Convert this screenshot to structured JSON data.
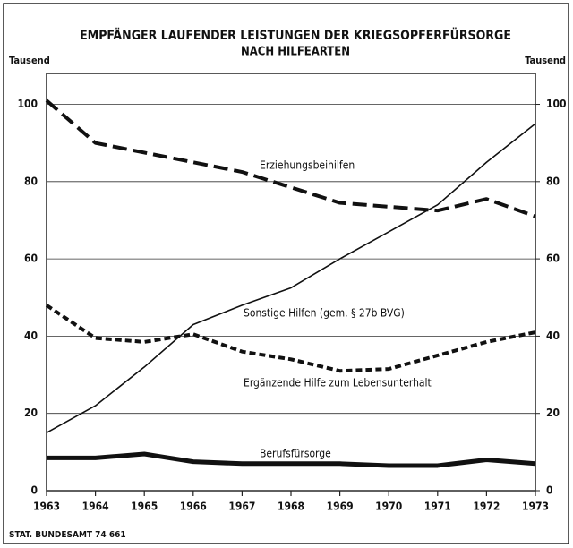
{
  "chart_data": {
    "type": "line",
    "title": "EMPFÄNGER LAUFENDER LEISTUNGEN DER KRIEGSOPFERFÜRSORGE",
    "subtitle": "NACH HILFEARTEN",
    "ylabel": "Tausend",
    "y2label": "Tausend",
    "source": "STAT. BUNDESAMT 74 661",
    "x": [
      1963,
      1964,
      1965,
      1966,
      1967,
      1968,
      1969,
      1970,
      1971,
      1972,
      1973
    ],
    "xlim": [
      1963,
      1973
    ],
    "xticks": [
      1963,
      1964,
      1965,
      1966,
      1967,
      1968,
      1969,
      1970,
      1971,
      1972,
      1973
    ],
    "ylim": [
      0,
      108
    ],
    "yticks": [
      0,
      20,
      40,
      60,
      80,
      100
    ],
    "y2lim": [
      0,
      108
    ],
    "y2ticks": [
      0,
      20,
      40,
      60,
      80,
      100
    ],
    "grid": true,
    "series": [
      {
        "name": "Erziehungsbeihilfen",
        "color": "#111111",
        "style": "dashed",
        "values": [
          101,
          90,
          87.5,
          85,
          82.5,
          78.5,
          74.5,
          73.5,
          72.5,
          75.5,
          71
        ]
      },
      {
        "name": "Sonstige Hilfen (gem. § 27b BVG)",
        "color": "#111111",
        "style": "thin",
        "values": [
          15,
          22,
          32,
          43,
          48,
          52.5,
          60,
          67,
          74,
          85,
          95
        ]
      },
      {
        "name": "Ergänzende Hilfe zum Lebensunterhalt",
        "color": "#111111",
        "style": "dotted",
        "values": [
          48,
          39.5,
          38.5,
          40.5,
          36,
          34,
          31,
          31.5,
          35,
          38.5,
          41
        ]
      },
      {
        "name": "Berufsfürsorge",
        "color": "#111111",
        "style": "thick",
        "values": [
          8.5,
          8.5,
          9.5,
          7.5,
          7,
          7,
          7,
          6.5,
          6.5,
          8,
          7
        ]
      }
    ]
  }
}
